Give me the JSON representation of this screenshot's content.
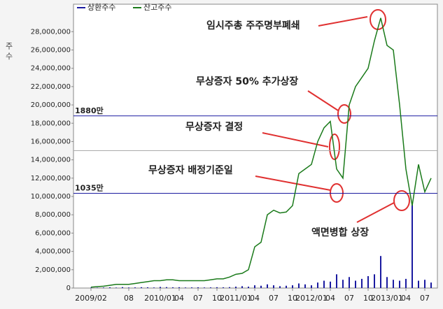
{
  "chart_data": {
    "type": "line",
    "y_label": "주 수",
    "categories": [
      "2009/02",
      null,
      null,
      null,
      null,
      null,
      "08",
      null,
      null,
      null,
      null,
      "2010/01",
      null,
      null,
      "04",
      null,
      null,
      "07",
      null,
      null,
      "10",
      null,
      null,
      "2011/01",
      null,
      null,
      "04",
      null,
      null,
      "07",
      null,
      null,
      "10",
      null,
      null,
      "2012/01",
      null,
      null,
      "04",
      null,
      null,
      "07",
      null,
      null,
      "10",
      null,
      null,
      "2013/01",
      null,
      null,
      "04",
      null,
      null,
      "07",
      null
    ],
    "series": [
      {
        "name": "상환주수",
        "color": "#1a1aa0",
        "style": "spikes",
        "values": [
          50000,
          40000,
          60000,
          80000,
          50000,
          100000,
          60000,
          70000,
          90000,
          80000,
          60000,
          120000,
          100000,
          80000,
          90000,
          60000,
          70000,
          80000,
          60000,
          70000,
          90000,
          80000,
          100000,
          150000,
          200000,
          150000,
          300000,
          250000,
          400000,
          300000,
          200000,
          250000,
          300000,
          500000,
          400000,
          300000,
          600000,
          800000,
          700000,
          1500000,
          900000,
          1200000,
          800000,
          1000000,
          1300000,
          1500000,
          3500000,
          1200000,
          900000,
          800000,
          1000000,
          9300000,
          800000,
          900000,
          600000
        ]
      },
      {
        "name": "잔고주수",
        "color": "#1a7a1a",
        "style": "line",
        "values": [
          100000,
          150000,
          200000,
          300000,
          400000,
          400000,
          400000,
          500000,
          600000,
          700000,
          800000,
          800000,
          900000,
          900000,
          800000,
          800000,
          800000,
          800000,
          800000,
          900000,
          1000000,
          1000000,
          1200000,
          1500000,
          1600000,
          2000000,
          4500000,
          5000000,
          8000000,
          8500000,
          8200000,
          8300000,
          9000000,
          12500000,
          13000000,
          13500000,
          16000000,
          17500000,
          18200000,
          13000000,
          12000000,
          20000000,
          22000000,
          23000000,
          24000000,
          27000000,
          29500000,
          26500000,
          26000000,
          20000000,
          13000000,
          9000000,
          13500000,
          10500000,
          12000000
        ]
      }
    ],
    "ylim": [
      0,
      31000000
    ],
    "yticks": [
      0,
      {
        "value": 2000000,
        "label": "2,000,000"
      },
      {
        "value": 4000000,
        "label": "4,000,000"
      },
      {
        "value": 6000000,
        "label": "6,000,000"
      },
      {
        "value": 8000000,
        "label": "8,000,000"
      },
      {
        "value": 10000000,
        "label": "10,000,000"
      },
      {
        "value": 12000000,
        "label": "12,000,000"
      },
      {
        "value": 14000000,
        "label": "14,000,000"
      },
      {
        "value": 16000000,
        "label": "16,000,000"
      },
      {
        "value": 18000000,
        "label": "18,000,000"
      },
      {
        "value": 20000000,
        "label": "20,000,000"
      },
      {
        "value": 22000000,
        "label": "22,000,000"
      },
      {
        "value": 24000000,
        "label": "24,000,000"
      },
      {
        "value": 26000000,
        "label": "26,000,000"
      },
      {
        "value": 28000000,
        "label": "28,000,000"
      }
    ],
    "midline": 15000000,
    "hlines": [
      {
        "value": 18800000,
        "label": "1880만",
        "color": "#1a1aa0"
      },
      {
        "value": 10350000,
        "label": "1035만",
        "color": "#1a1aa0"
      }
    ],
    "annotations": [
      {
        "text": "임시주총 주주명부폐쇄",
        "color": "#1a3fd0"
      },
      {
        "text": "무상증자 50% 추가상장",
        "color": "#d01a1a"
      },
      {
        "text": "무상증자 결정",
        "color": "#d01a1a"
      },
      {
        "text": "무상증자 배정기준일",
        "color": "#d01a1a"
      },
      {
        "text": "액면병합 상장",
        "color": "#1a3fd0"
      }
    ]
  }
}
